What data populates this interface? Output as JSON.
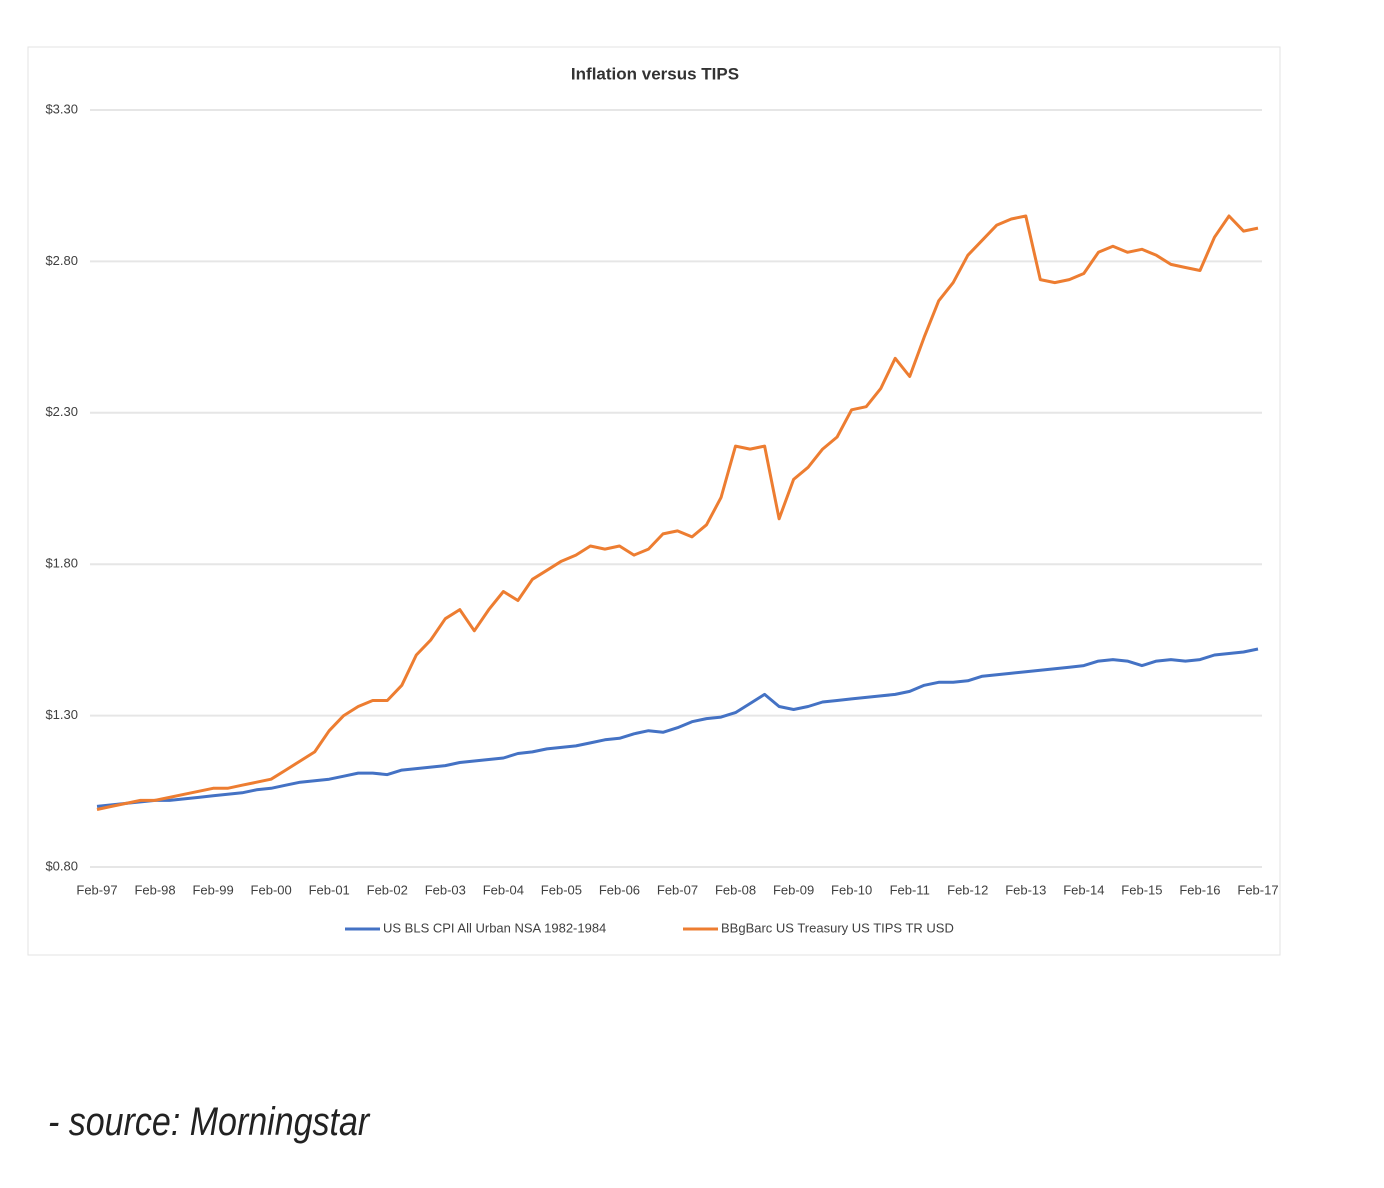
{
  "chart_data": {
    "type": "line",
    "title": "Inflation versus TIPS",
    "categories": [
      "Feb-97",
      null,
      null,
      null,
      "Feb-98",
      null,
      null,
      null,
      "Feb-99",
      null,
      null,
      null,
      "Feb-00",
      null,
      null,
      null,
      "Feb-01",
      null,
      null,
      null,
      "Feb-02",
      null,
      null,
      null,
      "Feb-03",
      null,
      null,
      null,
      "Feb-04",
      null,
      null,
      null,
      "Feb-05",
      null,
      null,
      null,
      "Feb-06",
      null,
      null,
      null,
      "Feb-07",
      null,
      null,
      null,
      "Feb-08",
      null,
      null,
      null,
      "Feb-09",
      null,
      null,
      null,
      "Feb-10",
      null,
      null,
      null,
      "Feb-11",
      null,
      null,
      null,
      "Feb-12",
      null,
      null,
      null,
      "Feb-13",
      null,
      null,
      null,
      "Feb-14",
      null,
      null,
      null,
      "Feb-15",
      null,
      null,
      null,
      "Feb-16",
      null,
      null,
      null,
      "Feb-17"
    ],
    "series": [
      {
        "name": "US BLS CPI All Urban NSA 1982-1984",
        "color": "#4472c4",
        "values": [
          1.0,
          1.005,
          1.01,
          1.015,
          1.02,
          1.02,
          1.025,
          1.03,
          1.035,
          1.04,
          1.045,
          1.055,
          1.06,
          1.07,
          1.08,
          1.085,
          1.09,
          1.1,
          1.11,
          1.11,
          1.105,
          1.12,
          1.125,
          1.13,
          1.135,
          1.145,
          1.15,
          1.155,
          1.16,
          1.175,
          1.18,
          1.19,
          1.195,
          1.2,
          1.21,
          1.22,
          1.225,
          1.24,
          1.25,
          1.245,
          1.26,
          1.28,
          1.29,
          1.295,
          1.31,
          1.34,
          1.37,
          1.33,
          1.32,
          1.33,
          1.345,
          1.35,
          1.355,
          1.36,
          1.365,
          1.37,
          1.38,
          1.4,
          1.41,
          1.41,
          1.415,
          1.43,
          1.435,
          1.44,
          1.445,
          1.45,
          1.455,
          1.46,
          1.465,
          1.48,
          1.485,
          1.48,
          1.465,
          1.48,
          1.485,
          1.48,
          1.485,
          1.5,
          1.505,
          1.51,
          1.52
        ]
      },
      {
        "name": "BBgBarc US Treasury US TIPS TR USD",
        "color": "#ed7d31",
        "values": [
          0.99,
          1.0,
          1.01,
          1.02,
          1.02,
          1.03,
          1.04,
          1.05,
          1.06,
          1.06,
          1.07,
          1.08,
          1.09,
          1.12,
          1.15,
          1.18,
          1.25,
          1.3,
          1.33,
          1.35,
          1.35,
          1.4,
          1.5,
          1.55,
          1.62,
          1.65,
          1.58,
          1.65,
          1.71,
          1.68,
          1.75,
          1.78,
          1.81,
          1.83,
          1.86,
          1.85,
          1.86,
          1.83,
          1.85,
          1.9,
          1.91,
          1.89,
          1.93,
          2.02,
          2.19,
          2.18,
          2.19,
          1.95,
          2.08,
          2.12,
          2.18,
          2.22,
          2.31,
          2.32,
          2.38,
          2.48,
          2.42,
          2.55,
          2.67,
          2.73,
          2.82,
          2.87,
          2.92,
          2.94,
          2.95,
          2.74,
          2.73,
          2.74,
          2.76,
          2.83,
          2.85,
          2.83,
          2.84,
          2.82,
          2.79,
          2.78,
          2.77,
          2.88,
          2.95,
          2.9,
          2.91
        ]
      }
    ],
    "ylim": [
      0.8,
      3.3
    ],
    "yticks": [
      {
        "value": 0.8,
        "label": "$0.80"
      },
      {
        "value": 1.3,
        "label": "$1.30"
      },
      {
        "value": 1.8,
        "label": "$1.80"
      },
      {
        "value": 2.3,
        "label": "$2.30"
      },
      {
        "value": 2.8,
        "label": "$2.80"
      },
      {
        "value": 3.3,
        "label": "$3.30"
      }
    ],
    "grid": true,
    "legend": "bottom"
  },
  "footer": "- source: Morningstar"
}
